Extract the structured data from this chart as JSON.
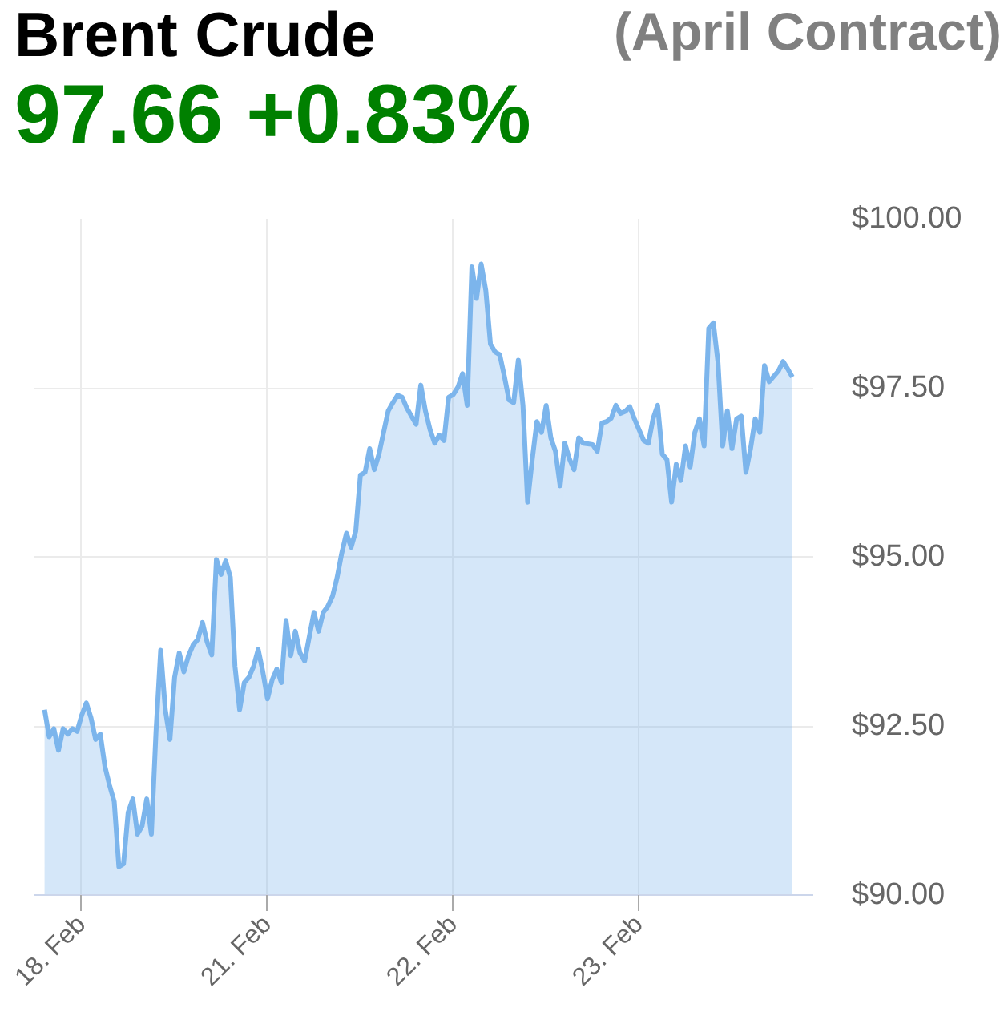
{
  "chart_data": {
    "type": "area",
    "title": "Brent Crude",
    "subtitle": "(April Contract)",
    "annotations": [
      "97.66 +0.83%"
    ],
    "categories": [
      null,
      null,
      null,
      null,
      null,
      null,
      null,
      null,
      "18. Feb",
      null,
      null,
      null,
      null,
      null,
      null,
      null,
      null,
      null,
      null,
      null,
      null,
      null,
      null,
      null,
      null,
      null,
      null,
      null,
      null,
      null,
      null,
      null,
      null,
      null,
      null,
      null,
      null,
      null,
      null,
      null,
      null,
      null,
      null,
      null,
      null,
      null,
      null,
      null,
      "21. Feb",
      null,
      null,
      null,
      null,
      null,
      null,
      null,
      null,
      null,
      null,
      null,
      null,
      null,
      null,
      null,
      null,
      null,
      null,
      null,
      null,
      null,
      null,
      null,
      null,
      null,
      null,
      null,
      null,
      null,
      null,
      null,
      null,
      null,
      null,
      null,
      null,
      null,
      null,
      null,
      "22. Feb",
      null,
      null,
      null,
      null,
      null,
      null,
      null,
      null,
      null,
      null,
      null,
      null,
      null,
      null,
      null,
      null,
      null,
      null,
      null,
      null,
      null,
      null,
      null,
      null,
      null,
      null,
      null,
      null,
      null,
      null,
      null,
      null,
      null,
      null,
      null,
      null,
      null,
      null,
      null,
      "23. Feb",
      null,
      null,
      null,
      null,
      null,
      null,
      null,
      null,
      null,
      null,
      null,
      null,
      null,
      null,
      null,
      null,
      null,
      null,
      null,
      null,
      null,
      null,
      null,
      null,
      null,
      null,
      null,
      null,
      null,
      null,
      null,
      null,
      null
    ],
    "series": [
      {
        "color": "#7cb5ec",
        "values": [
          92.74,
          92.34,
          92.46,
          92.14,
          92.46,
          92.38,
          92.46,
          92.42,
          92.66,
          92.84,
          92.62,
          92.3,
          92.38,
          91.9,
          91.62,
          91.38,
          90.42,
          90.46,
          91.22,
          91.42,
          90.9,
          91.02,
          91.42,
          90.9,
          92.42,
          93.62,
          92.74,
          92.3,
          93.22,
          93.58,
          93.3,
          93.54,
          93.7,
          93.78,
          94.03,
          93.74,
          93.55,
          94.96,
          94.74,
          94.94,
          94.7,
          93.38,
          92.74,
          93.14,
          93.22,
          93.38,
          93.63,
          93.3,
          92.9,
          93.18,
          93.34,
          93.14,
          94.06,
          93.54,
          93.9,
          93.58,
          93.46,
          93.82,
          94.18,
          93.9,
          94.18,
          94.27,
          94.42,
          94.7,
          95.06,
          95.35,
          95.14,
          95.38,
          96.21,
          96.25,
          96.6,
          96.29,
          96.52,
          96.84,
          97.16,
          97.28,
          97.39,
          97.36,
          97.2,
          97.08,
          96.96,
          97.54,
          97.16,
          96.88,
          96.68,
          96.8,
          96.72,
          97.36,
          97.4,
          97.51,
          97.71,
          97.24,
          99.29,
          98.82,
          99.33,
          98.94,
          98.15,
          98.03,
          97.99,
          97.67,
          97.32,
          97.28,
          97.91,
          97.24,
          95.81,
          96.44,
          97.0,
          96.84,
          97.24,
          96.76,
          96.56,
          96.05,
          96.68,
          96.45,
          96.29,
          96.76,
          96.68,
          96.67,
          96.66,
          96.56,
          96.98,
          97.0,
          97.05,
          97.24,
          97.12,
          97.15,
          97.22,
          97.04,
          96.88,
          96.72,
          96.68,
          97.04,
          97.24,
          96.52,
          96.44,
          95.81,
          96.37,
          96.13,
          96.64,
          96.33,
          96.84,
          97.04,
          96.64,
          98.38,
          98.46,
          97.87,
          96.64,
          97.16,
          96.6,
          97.04,
          97.08,
          96.25,
          96.6,
          97.04,
          96.84,
          97.83,
          97.59,
          97.67,
          97.75,
          97.89,
          97.78,
          97.66
        ]
      }
    ],
    "ylim": [
      90,
      100
    ],
    "yticks": [
      {
        "value": 90,
        "label": "$90.00"
      },
      {
        "value": 92.5,
        "label": "$92.50"
      },
      {
        "value": 95,
        "label": "$95.00"
      },
      {
        "value": 97.5,
        "label": "$97.50"
      },
      {
        "value": 100,
        "label": "$100.00"
      }
    ],
    "grid": true
  }
}
